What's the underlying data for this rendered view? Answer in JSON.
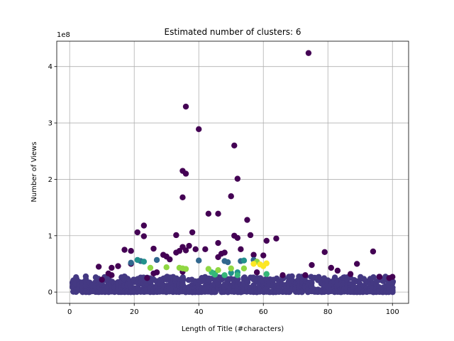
{
  "chart_data": {
    "type": "scatter",
    "title": "Estimated number of clusters: 6",
    "xlabel": "Length of Title (#characters)",
    "ylabel": "Number of Views",
    "y_offset_label": "1e8",
    "xlim": [
      -4,
      105
    ],
    "ylim": [
      -0.2,
      4.45
    ],
    "x_ticks": [
      0,
      20,
      40,
      60,
      80,
      100
    ],
    "y_ticks": [
      0,
      1,
      2,
      3,
      4
    ],
    "y_unit_multiplier": "1e8",
    "grid": true,
    "legend": "none",
    "colors": {
      "cluster_0": "#440154",
      "cluster_1": "#443983",
      "cluster_2": "#31688e",
      "cluster_3": "#21918c",
      "cluster_4": "#35b779",
      "cluster_5": "#90d743",
      "cluster_6": "#fde725"
    },
    "series": [
      {
        "color_key": "cluster_0",
        "points": [
          [
            74,
            4.24
          ],
          [
            36,
            3.29
          ],
          [
            40,
            2.89
          ],
          [
            51,
            2.6
          ],
          [
            35,
            2.15
          ],
          [
            36,
            2.1
          ],
          [
            52,
            2.01
          ],
          [
            35,
            1.68
          ],
          [
            50,
            1.7
          ],
          [
            43,
            1.39
          ],
          [
            46,
            1.39
          ],
          [
            55,
            1.28
          ],
          [
            23,
            1.18
          ],
          [
            21,
            1.06
          ],
          [
            38,
            1.06
          ],
          [
            33,
            1.01
          ],
          [
            51,
            1.0
          ],
          [
            56,
            1.01
          ],
          [
            23,
            0.99
          ],
          [
            52,
            0.96
          ],
          [
            61,
            0.91
          ],
          [
            64,
            0.95
          ],
          [
            46,
            0.87
          ],
          [
            37,
            0.82
          ],
          [
            34,
            0.73
          ],
          [
            36,
            0.74
          ],
          [
            35,
            0.8
          ],
          [
            39,
            0.76
          ],
          [
            42,
            0.76
          ],
          [
            47,
            0.68
          ],
          [
            48,
            0.7
          ],
          [
            53,
            0.76
          ],
          [
            17,
            0.75
          ],
          [
            19,
            0.73
          ],
          [
            26,
            0.77
          ],
          [
            29,
            0.66
          ],
          [
            30,
            0.63
          ],
          [
            33,
            0.7
          ],
          [
            46,
            0.62
          ],
          [
            57,
            0.66
          ],
          [
            60,
            0.65
          ],
          [
            79,
            0.71
          ],
          [
            94,
            0.72
          ],
          [
            9,
            0.45
          ],
          [
            12,
            0.33
          ],
          [
            13,
            0.43
          ],
          [
            15,
            0.46
          ],
          [
            19,
            0.5
          ],
          [
            26,
            0.33
          ],
          [
            27,
            0.35
          ],
          [
            31,
            0.58
          ],
          [
            35,
            0.36
          ],
          [
            58,
            0.35
          ],
          [
            66,
            0.3
          ],
          [
            75,
            0.48
          ],
          [
            81,
            0.43
          ],
          [
            83,
            0.38
          ],
          [
            87,
            0.32
          ],
          [
            89,
            0.5
          ],
          [
            96,
            0.27
          ],
          [
            99,
            0.25
          ],
          [
            100,
            0.27
          ],
          [
            10,
            0.22
          ],
          [
            13,
            0.3
          ],
          [
            24,
            0.25
          ],
          [
            73,
            0.3
          ]
        ]
      },
      {
        "color_key": "cluster_2",
        "points": [
          [
            22,
            0.55
          ],
          [
            27,
            0.57
          ],
          [
            40,
            0.56
          ],
          [
            48,
            0.55
          ],
          [
            53,
            0.55
          ],
          [
            57,
            0.57
          ],
          [
            19,
            0.52
          ],
          [
            49,
            0.53
          ]
        ]
      },
      {
        "color_key": "cluster_3",
        "points": [
          [
            21,
            0.57
          ],
          [
            23,
            0.54
          ],
          [
            54,
            0.56
          ],
          [
            45,
            0.33
          ],
          [
            50,
            0.34
          ],
          [
            52,
            0.35
          ]
        ]
      },
      {
        "color_key": "cluster_4",
        "points": [
          [
            45,
            0.31
          ],
          [
            48,
            0.3
          ],
          [
            61,
            0.32
          ],
          [
            44,
            0.35
          ],
          [
            52,
            0.3
          ]
        ]
      },
      {
        "color_key": "cluster_5",
        "points": [
          [
            25,
            0.43
          ],
          [
            30,
            0.44
          ],
          [
            34,
            0.43
          ],
          [
            35,
            0.42
          ],
          [
            36,
            0.41
          ],
          [
            43,
            0.41
          ],
          [
            46,
            0.39
          ],
          [
            50,
            0.42
          ],
          [
            54,
            0.42
          ],
          [
            58,
            0.54
          ]
        ]
      },
      {
        "color_key": "cluster_6",
        "points": [
          [
            57,
            0.5
          ],
          [
            59,
            0.49
          ],
          [
            61,
            0.51
          ],
          [
            60,
            0.46
          ]
        ]
      }
    ],
    "background_cluster": {
      "color_key": "cluster_1",
      "x_range": [
        1,
        100
      ],
      "y_range": [
        0,
        0.28
      ]
    }
  }
}
